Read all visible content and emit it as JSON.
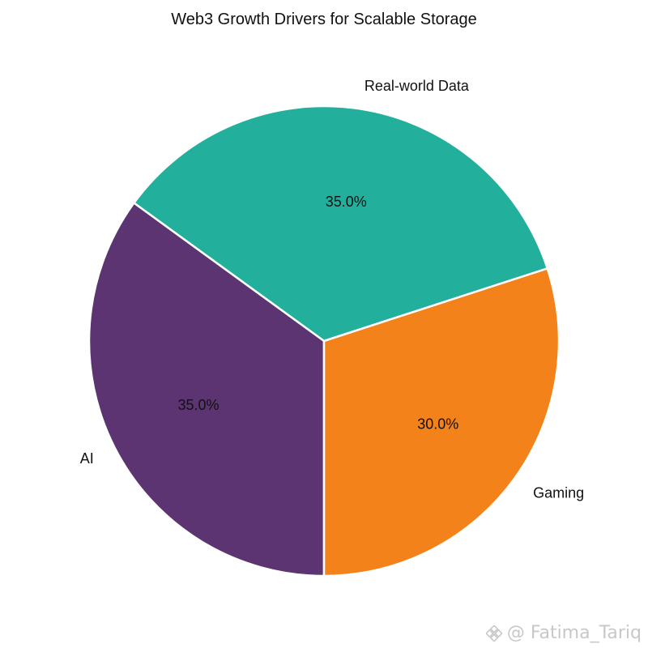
{
  "chart_data": {
    "type": "pie",
    "title": "Web3 Growth Drivers for Scalable Storage",
    "labels": [
      "Real-world Data",
      "AI",
      "Gaming"
    ],
    "values": [
      35.0,
      35.0,
      30.0
    ],
    "percent_labels": [
      "35.0%",
      "35.0%",
      "30.0%"
    ],
    "colors": [
      "#22b09d",
      "#5b3471",
      "#f3821a"
    ],
    "start_angle_deg": 18,
    "direction": "counterclockwise",
    "legend": "none"
  },
  "watermark": {
    "text": "@ Fatima_Tariq",
    "icon": "binance-logo-icon"
  }
}
